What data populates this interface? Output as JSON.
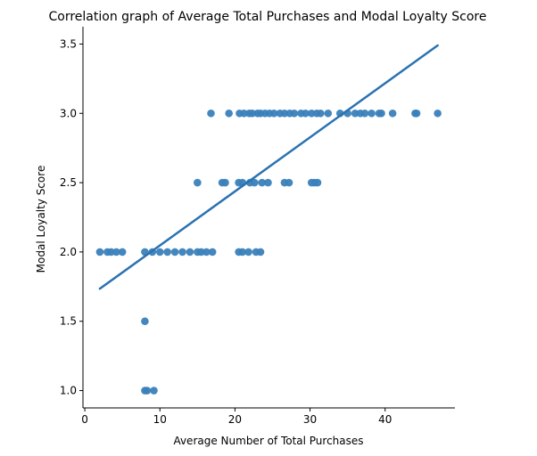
{
  "chart_data": {
    "type": "scatter",
    "title": "Correlation graph of Average Total Purchases and Modal Loyalty Score",
    "xlabel": "Average Number of Total Purchases",
    "ylabel": "Modal Loyalty Score",
    "xlim": [
      -0.25,
      49.3
    ],
    "ylim": [
      0.875,
      3.625
    ],
    "xticks": [
      0,
      10,
      20,
      30,
      40
    ],
    "xtick_labels": [
      "0",
      "10",
      "20",
      "30",
      "40"
    ],
    "yticks": [
      1.0,
      1.5,
      2.0,
      2.5,
      3.0,
      3.5
    ],
    "ytick_labels": [
      "1.0",
      "1.5",
      "2.0",
      "2.5",
      "3.0",
      "3.5"
    ],
    "grid": false,
    "colors": {
      "points": "#3a81ba",
      "fit_line": "#2a72b0"
    },
    "series": [
      {
        "points": [
          [
            2.0,
            2.0
          ],
          [
            3.0,
            2.0
          ],
          [
            3.5,
            2.0
          ],
          [
            4.2,
            2.0
          ],
          [
            5.0,
            2.0
          ],
          [
            8.0,
            2.0
          ],
          [
            9.0,
            2.0
          ],
          [
            10.0,
            2.0
          ],
          [
            11.0,
            2.0
          ],
          [
            12.0,
            2.0
          ],
          [
            13.0,
            2.0
          ],
          [
            14.0,
            2.0
          ],
          [
            15.0,
            2.0
          ],
          [
            15.5,
            2.0
          ],
          [
            16.2,
            2.0
          ],
          [
            17.0,
            2.0
          ],
          [
            20.5,
            2.0
          ],
          [
            21.0,
            2.0
          ],
          [
            21.8,
            2.0
          ],
          [
            22.8,
            2.0
          ],
          [
            23.4,
            2.0
          ],
          [
            8.0,
            1.5
          ],
          [
            8.0,
            1.0
          ],
          [
            8.3,
            1.0
          ],
          [
            9.2,
            1.0
          ],
          [
            15.0,
            2.5
          ],
          [
            18.3,
            2.5
          ],
          [
            18.7,
            2.5
          ],
          [
            20.5,
            2.5
          ],
          [
            21.0,
            2.5
          ],
          [
            22.0,
            2.5
          ],
          [
            22.6,
            2.5
          ],
          [
            23.6,
            2.5
          ],
          [
            24.4,
            2.5
          ],
          [
            26.6,
            2.5
          ],
          [
            27.2,
            2.5
          ],
          [
            30.2,
            2.5
          ],
          [
            30.6,
            2.5
          ],
          [
            31.0,
            2.5
          ],
          [
            16.8,
            3.0
          ],
          [
            19.2,
            3.0
          ],
          [
            20.6,
            3.0
          ],
          [
            21.2,
            3.0
          ],
          [
            21.9,
            3.0
          ],
          [
            22.3,
            3.0
          ],
          [
            23.0,
            3.0
          ],
          [
            23.4,
            3.0
          ],
          [
            24.0,
            3.0
          ],
          [
            24.6,
            3.0
          ],
          [
            25.2,
            3.0
          ],
          [
            26.0,
            3.0
          ],
          [
            26.6,
            3.0
          ],
          [
            27.3,
            3.0
          ],
          [
            27.9,
            3.0
          ],
          [
            28.8,
            3.0
          ],
          [
            29.4,
            3.0
          ],
          [
            30.2,
            3.0
          ],
          [
            30.9,
            3.0
          ],
          [
            31.4,
            3.0
          ],
          [
            32.4,
            3.0
          ],
          [
            34.0,
            3.0
          ],
          [
            35.0,
            3.0
          ],
          [
            36.0,
            3.0
          ],
          [
            36.7,
            3.0
          ],
          [
            37.3,
            3.0
          ],
          [
            38.2,
            3.0
          ],
          [
            39.2,
            3.0
          ],
          [
            39.5,
            3.0
          ],
          [
            41.0,
            3.0
          ],
          [
            44.0,
            3.0
          ],
          [
            44.2,
            3.0
          ],
          [
            47.0,
            3.0
          ]
        ]
      }
    ],
    "fit_line": [
      [
        2.0,
        1.735
      ],
      [
        47.0,
        3.49
      ]
    ]
  }
}
